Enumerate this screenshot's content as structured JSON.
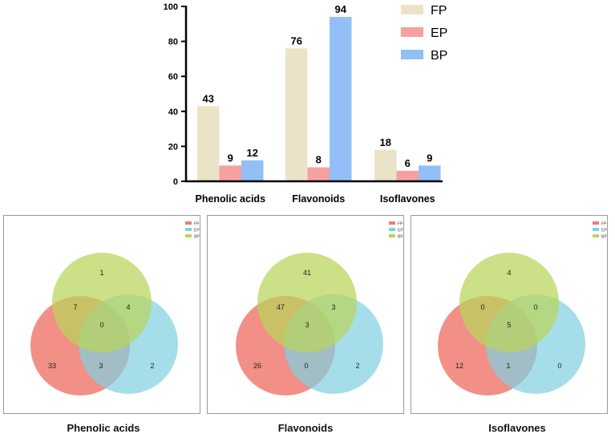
{
  "chart_data": [
    {
      "type": "bar",
      "categories": [
        "Phenolic acids",
        "Flavonoids",
        "Isoflavones"
      ],
      "series": [
        {
          "name": "FP",
          "color": "#ebe3c7",
          "values": [
            43,
            76,
            18
          ]
        },
        {
          "name": "EP",
          "color": "#f7a0a0",
          "values": [
            9,
            8,
            6
          ]
        },
        {
          "name": "BP",
          "color": "#93bff7",
          "values": [
            12,
            94,
            9
          ]
        }
      ],
      "ylim": [
        0,
        100
      ],
      "yticks": [
        "0",
        "20",
        "40",
        "60",
        "80",
        "100"
      ],
      "title": "",
      "xlabel": "",
      "ylabel": "",
      "legend_position": "top-right"
    },
    {
      "type": "venn",
      "title": "Phenolic acids",
      "legend": [
        {
          "name": "FP",
          "color": "#f07b72"
        },
        {
          "name": "EP",
          "color": "#7fd0e0"
        },
        {
          "name": "BP",
          "color": "#b9d45a"
        }
      ],
      "regions": {
        "BP_only": "1",
        "FP_BP": "7",
        "EP_BP": "4",
        "all": "0",
        "FP_only": "33",
        "FP_EP": "3",
        "EP_only": "2"
      }
    },
    {
      "type": "venn",
      "title": "Flavonoids",
      "legend": [
        {
          "name": "FP",
          "color": "#f07b72"
        },
        {
          "name": "EP",
          "color": "#7fd0e0"
        },
        {
          "name": "BP",
          "color": "#b9d45a"
        }
      ],
      "regions": {
        "BP_only": "41",
        "FP_BP": "47",
        "EP_BP": "3",
        "all": "3",
        "FP_only": "26",
        "FP_EP": "0",
        "EP_only": "2"
      }
    },
    {
      "type": "venn",
      "title": "Isoflavones",
      "legend": [
        {
          "name": "FP",
          "color": "#f07b72"
        },
        {
          "name": "EP",
          "color": "#7fd0e0"
        },
        {
          "name": "BP",
          "color": "#b9d45a"
        }
      ],
      "regions": {
        "BP_only": "4",
        "FP_BP": "0",
        "EP_BP": "0",
        "all": "5",
        "FP_only": "12",
        "FP_EP": "1",
        "EP_only": "0"
      }
    }
  ]
}
